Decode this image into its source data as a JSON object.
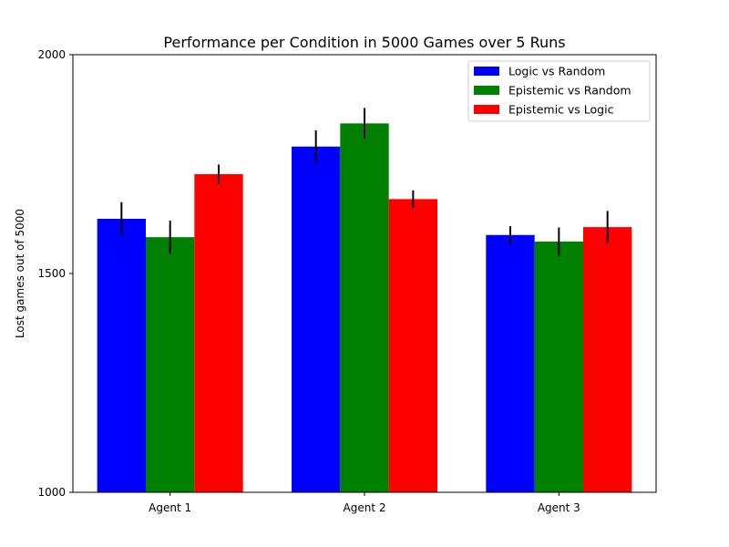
{
  "chart_data": {
    "type": "bar",
    "title": "Performance per Condition in 5000 Games over 5 Runs",
    "xlabel": "",
    "ylabel": "Lost games out of 5000",
    "ylim": [
      1000,
      2000
    ],
    "yticks": [
      "1000",
      "1500",
      "2000"
    ],
    "categories": [
      "Agent 1",
      "Agent 2",
      "Agent 3"
    ],
    "legend_position": "top-right",
    "grid": false,
    "series": [
      {
        "name": "Logic vs Random",
        "color": "#0000ff",
        "values": [
          1625,
          1790,
          1588
        ],
        "errors": [
          38,
          37,
          20
        ]
      },
      {
        "name": "Epistemic vs Random",
        "color": "#008000",
        "values": [
          1583,
          1843,
          1573
        ],
        "errors": [
          38,
          35,
          32
        ]
      },
      {
        "name": "Epistemic vs Logic",
        "color": "#ff0000",
        "values": [
          1727,
          1670,
          1606
        ],
        "errors": [
          22,
          20,
          37
        ]
      }
    ]
  }
}
